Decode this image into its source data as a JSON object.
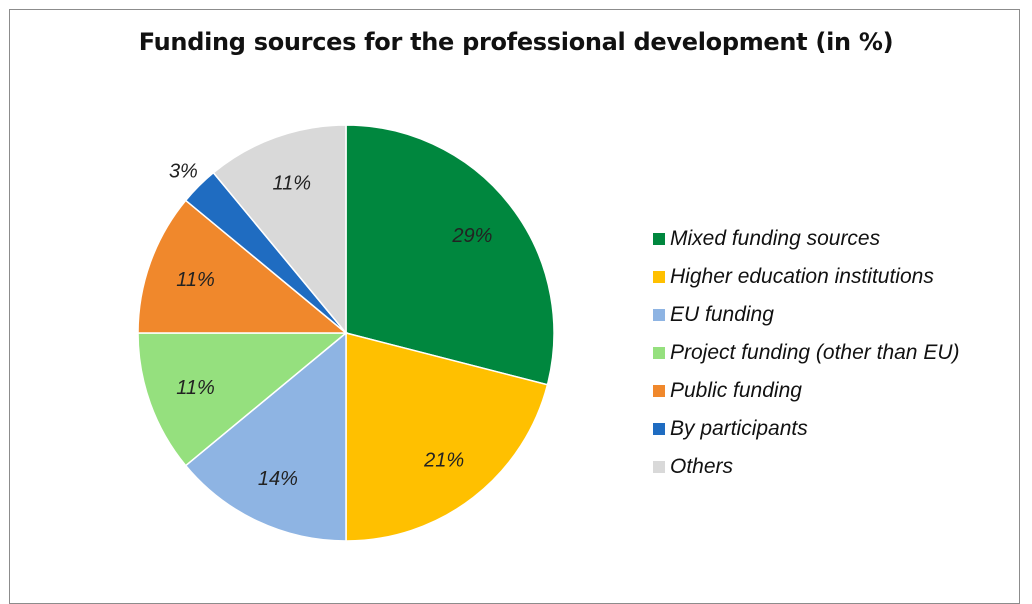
{
  "chart_data": {
    "type": "pie",
    "title": "Funding sources for the professional development (in %)",
    "legend_position": "right",
    "slices": [
      {
        "label": "Mixed funding sources",
        "value": 29,
        "value_label": "29%",
        "color": "#00873e"
      },
      {
        "label": "Higher education institutions",
        "value": 21,
        "value_label": "21%",
        "color": "#ffc000"
      },
      {
        "label": "EU funding",
        "value": 14,
        "value_label": "14%",
        "color": "#8eb4e3"
      },
      {
        "label": "Project funding (other than EU)",
        "value": 11,
        "value_label": "11%",
        "color": "#95e07e"
      },
      {
        "label": "Public funding",
        "value": 11,
        "value_label": "11%",
        "color": "#f0882c"
      },
      {
        "label": "By participants",
        "value": 3,
        "value_label": "3%",
        "color": "#1f6cc1"
      },
      {
        "label": "Others",
        "value": 11,
        "value_label": "11%",
        "color": "#d9d9d9"
      }
    ]
  }
}
